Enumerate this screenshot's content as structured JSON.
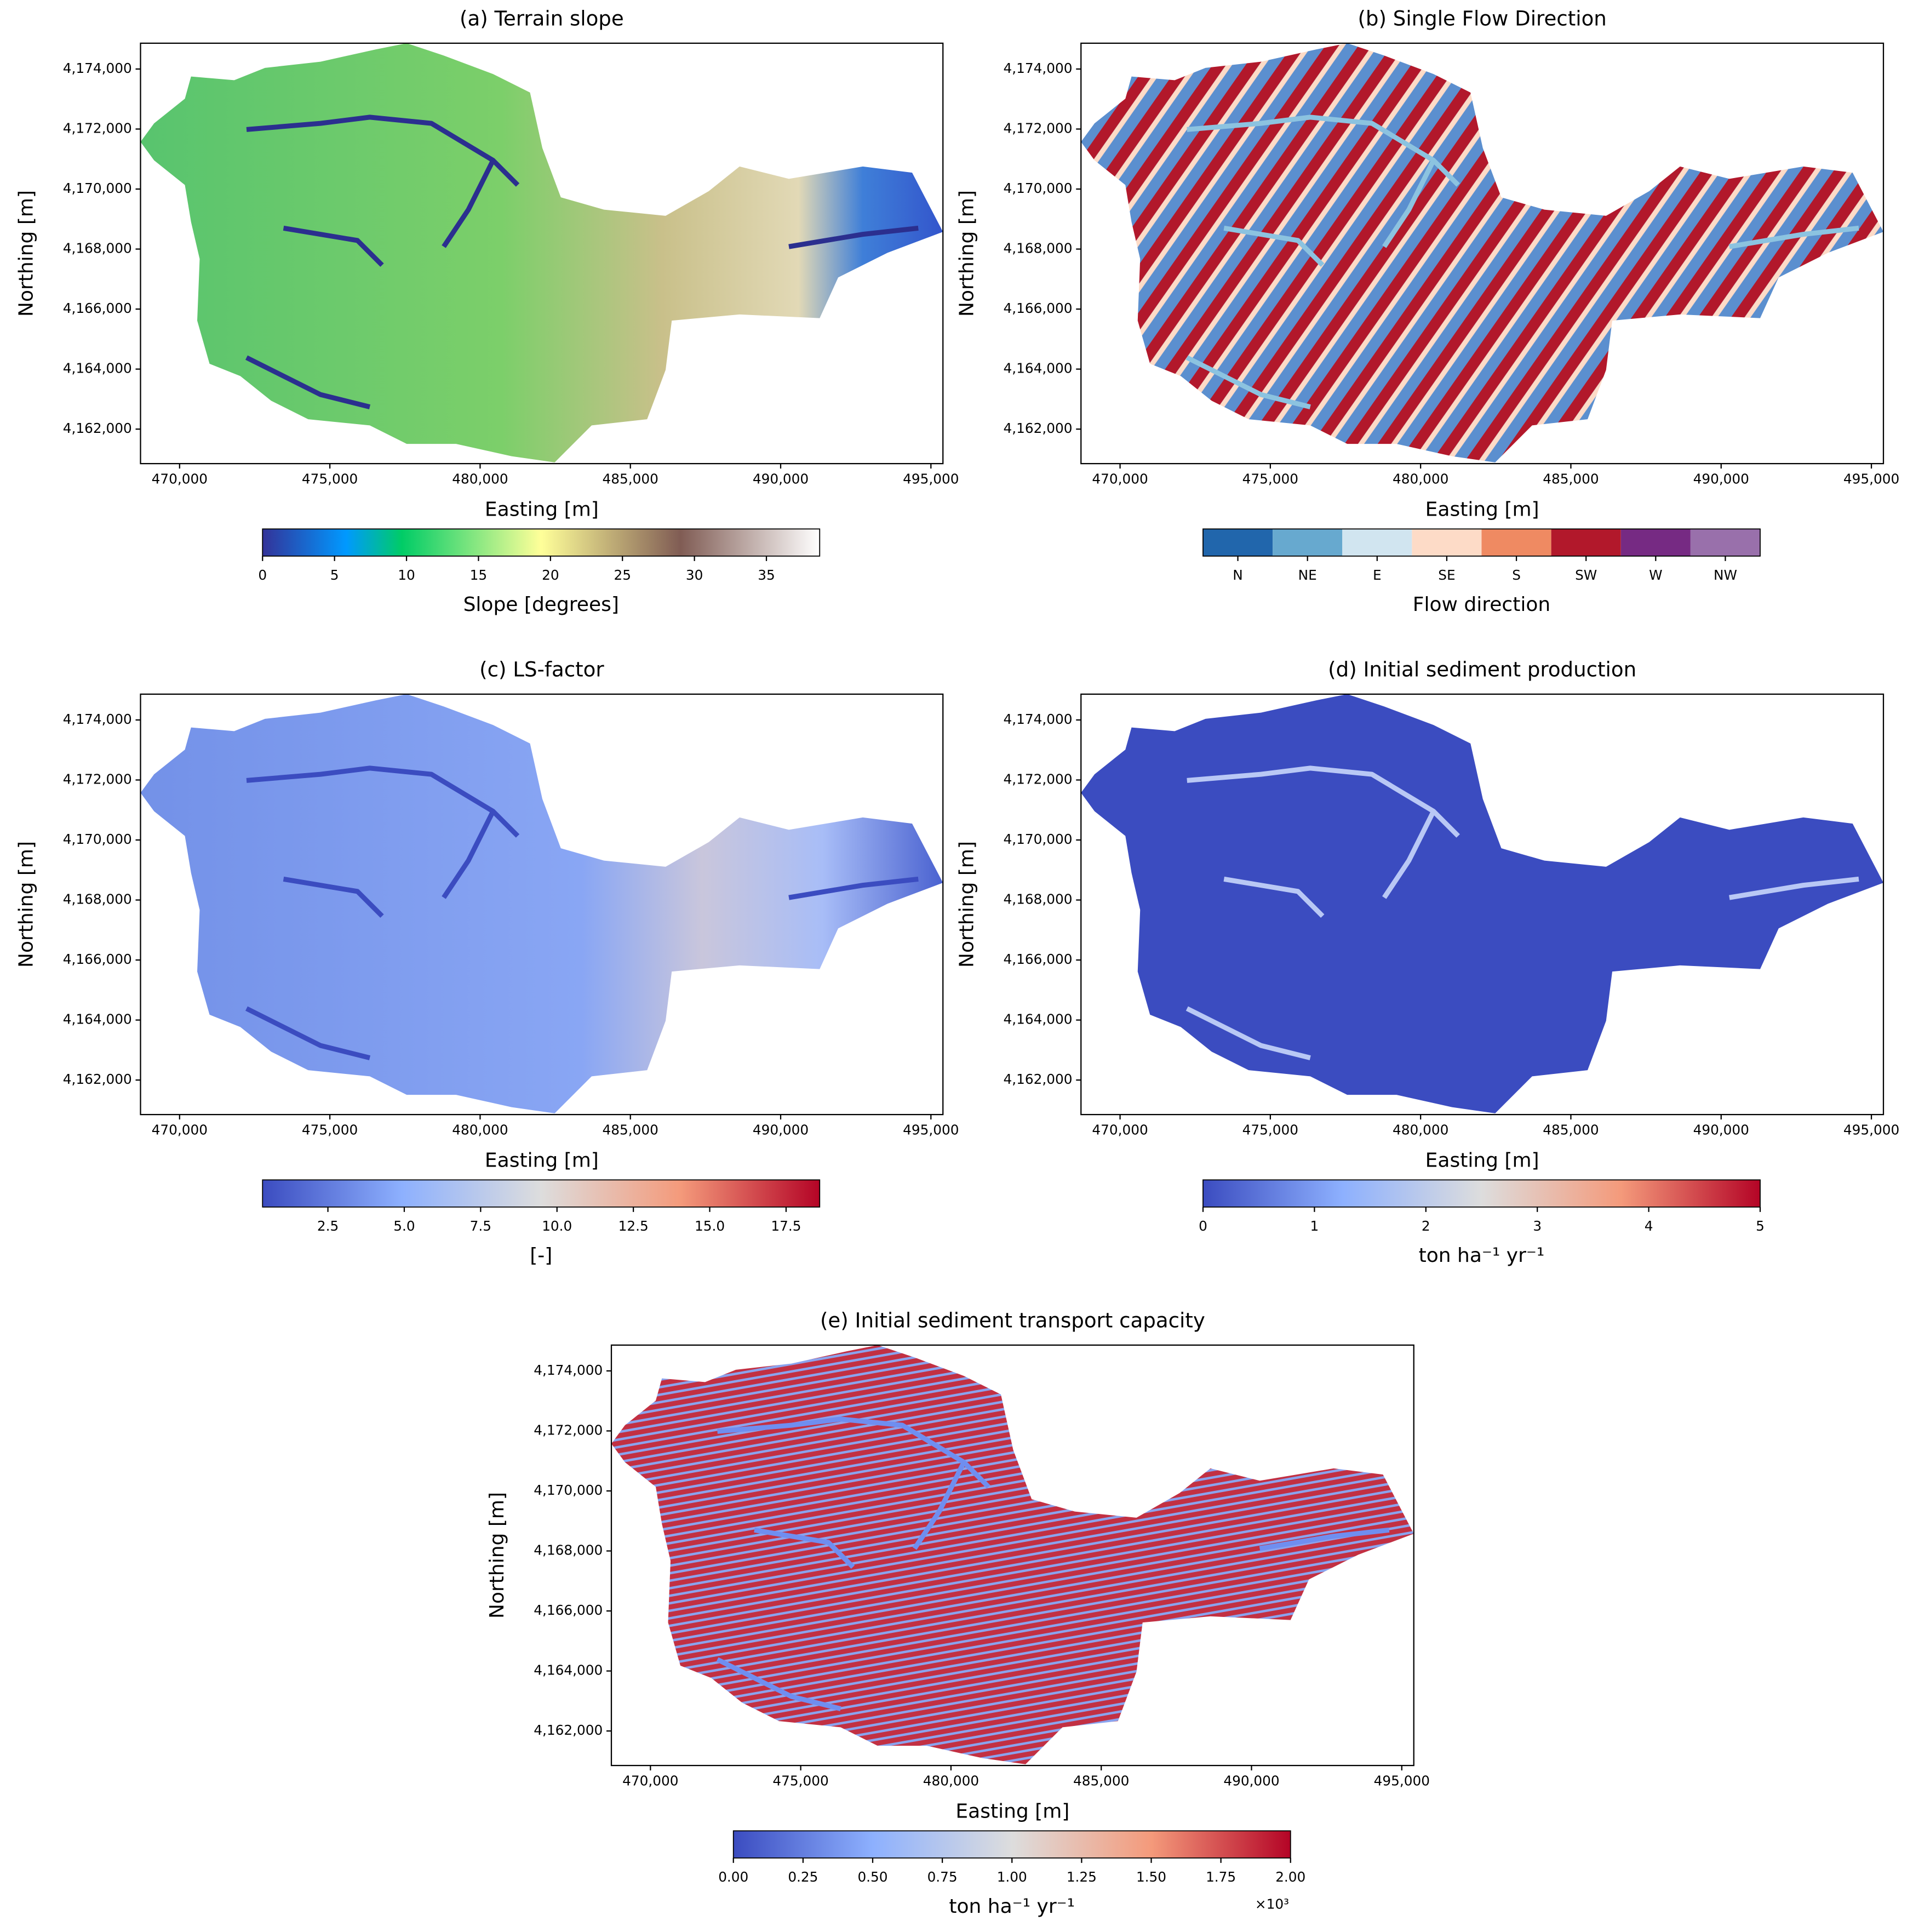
{
  "chart_data": [
    {
      "type": "raster",
      "title": "(a) Terrain slope",
      "xlabel": "Easting [m]",
      "ylabel": "Northing [m]",
      "xlim": [
        468700,
        495400
      ],
      "ylim": [
        4160850,
        4174860
      ],
      "xticks": [
        {
          "value": 470000,
          "label": "470,000"
        },
        {
          "value": 475000,
          "label": "475,000"
        },
        {
          "value": 480000,
          "label": "480,000"
        },
        {
          "value": 485000,
          "label": "485,000"
        },
        {
          "value": 490000,
          "label": "490,000"
        },
        {
          "value": 495000,
          "label": "495,000"
        }
      ],
      "yticks": [
        {
          "value": 4162000,
          "label": "4,162,000"
        },
        {
          "value": 4164000,
          "label": "4,164,000"
        },
        {
          "value": 4166000,
          "label": "4,166,000"
        },
        {
          "value": 4168000,
          "label": "4,168,000"
        },
        {
          "value": 4170000,
          "label": "4,170,000"
        },
        {
          "value": 4172000,
          "label": "4,172,000"
        },
        {
          "value": 4174000,
          "label": "4,174,000"
        }
      ],
      "colorbar": {
        "label": "Slope [degrees]",
        "colormap": "terrain",
        "lim": [
          0,
          38.7
        ],
        "ticks": [
          0,
          5,
          10,
          15,
          20,
          25,
          30,
          35
        ]
      }
    },
    {
      "type": "raster",
      "title": "(b) Single Flow Direction",
      "xlabel": "Easting [m]",
      "ylabel": "Northing [m]",
      "xlim": [
        468700,
        495400
      ],
      "ylim": [
        4160850,
        4174860
      ],
      "xticks": [
        {
          "value": 470000,
          "label": "470,000"
        },
        {
          "value": 475000,
          "label": "475,000"
        },
        {
          "value": 480000,
          "label": "480,000"
        },
        {
          "value": 485000,
          "label": "485,000"
        },
        {
          "value": 490000,
          "label": "490,000"
        },
        {
          "value": 495000,
          "label": "495,000"
        }
      ],
      "yticks": [
        {
          "value": 4162000,
          "label": "4,162,000"
        },
        {
          "value": 4164000,
          "label": "4,164,000"
        },
        {
          "value": 4166000,
          "label": "4,166,000"
        },
        {
          "value": 4168000,
          "label": "4,168,000"
        },
        {
          "value": 4170000,
          "label": "4,170,000"
        },
        {
          "value": 4172000,
          "label": "4,172,000"
        },
        {
          "value": 4174000,
          "label": "4,174,000"
        }
      ],
      "colorbar": {
        "label": "Flow direction",
        "categories": [
          "N",
          "NE",
          "E",
          "SE",
          "S",
          "SW",
          "W",
          "NW"
        ],
        "colors": [
          "#2166ac",
          "#67a9cf",
          "#d1e5f0",
          "#fddbc7",
          "#ef8a62",
          "#b2182b",
          "#762a83",
          "#9970ab"
        ]
      }
    },
    {
      "type": "raster",
      "title": "(c) LS-factor",
      "xlabel": "Easting [m]",
      "ylabel": "Northing [m]",
      "xlim": [
        468700,
        495400
      ],
      "ylim": [
        4160850,
        4174860
      ],
      "xticks": [
        {
          "value": 470000,
          "label": "470,000"
        },
        {
          "value": 475000,
          "label": "475,000"
        },
        {
          "value": 480000,
          "label": "480,000"
        },
        {
          "value": 485000,
          "label": "485,000"
        },
        {
          "value": 490000,
          "label": "490,000"
        },
        {
          "value": 495000,
          "label": "495,000"
        }
      ],
      "yticks": [
        {
          "value": 4162000,
          "label": "4,162,000"
        },
        {
          "value": 4164000,
          "label": "4,164,000"
        },
        {
          "value": 4166000,
          "label": "4,166,000"
        },
        {
          "value": 4168000,
          "label": "4,168,000"
        },
        {
          "value": 4170000,
          "label": "4,170,000"
        },
        {
          "value": 4172000,
          "label": "4,172,000"
        },
        {
          "value": 4174000,
          "label": "4,174,000"
        }
      ],
      "colorbar": {
        "label": "[-]",
        "colormap": "coolwarm",
        "lim": [
          0.36,
          18.6
        ],
        "ticks": [
          2.5,
          {
            "value": 5,
            "label": "5.0"
          },
          7.5,
          {
            "value": 10,
            "label": "10.0"
          },
          12.5,
          {
            "value": 15,
            "label": "15.0"
          },
          17.5
        ]
      }
    },
    {
      "type": "raster",
      "title": "(d) Initial sediment production",
      "xlabel": "Easting [m]",
      "ylabel": "Northing [m]",
      "xlim": [
        468700,
        495400
      ],
      "ylim": [
        4160850,
        4174860
      ],
      "xticks": [
        {
          "value": 470000,
          "label": "470,000"
        },
        {
          "value": 475000,
          "label": "475,000"
        },
        {
          "value": 480000,
          "label": "480,000"
        },
        {
          "value": 485000,
          "label": "485,000"
        },
        {
          "value": 490000,
          "label": "490,000"
        },
        {
          "value": 495000,
          "label": "495,000"
        }
      ],
      "yticks": [
        {
          "value": 4162000,
          "label": "4,162,000"
        },
        {
          "value": 4164000,
          "label": "4,164,000"
        },
        {
          "value": 4166000,
          "label": "4,166,000"
        },
        {
          "value": 4168000,
          "label": "4,168,000"
        },
        {
          "value": 4170000,
          "label": "4,170,000"
        },
        {
          "value": 4172000,
          "label": "4,172,000"
        },
        {
          "value": 4174000,
          "label": "4,174,000"
        }
      ],
      "colorbar": {
        "label": "ton ha⁻¹ yr⁻¹",
        "colormap": "coolwarm",
        "lim": [
          0,
          5
        ],
        "ticks": [
          0,
          1,
          2,
          3,
          4,
          5
        ]
      }
    },
    {
      "type": "raster",
      "title": "(e) Initial sediment transport capacity",
      "xlabel": "Easting [m]",
      "ylabel": "Northing [m]",
      "xlim": [
        468700,
        495400
      ],
      "ylim": [
        4160850,
        4174860
      ],
      "xticks": [
        {
          "value": 470000,
          "label": "470,000"
        },
        {
          "value": 475000,
          "label": "475,000"
        },
        {
          "value": 480000,
          "label": "480,000"
        },
        {
          "value": 485000,
          "label": "485,000"
        },
        {
          "value": 490000,
          "label": "490,000"
        },
        {
          "value": 495000,
          "label": "495,000"
        }
      ],
      "yticks": [
        {
          "value": 4162000,
          "label": "4,162,000"
        },
        {
          "value": 4164000,
          "label": "4,164,000"
        },
        {
          "value": 4166000,
          "label": "4,166,000"
        },
        {
          "value": 4168000,
          "label": "4,168,000"
        },
        {
          "value": 4170000,
          "label": "4,170,000"
        },
        {
          "value": 4172000,
          "label": "4,172,000"
        },
        {
          "value": 4174000,
          "label": "4,174,000"
        }
      ],
      "colorbar": {
        "label": "ton ha⁻¹ yr⁻¹",
        "colormap": "coolwarm",
        "lim": [
          0,
          2
        ],
        "offset_text": "×10³",
        "ticks": [
          {
            "value": 0,
            "label": "0.00"
          },
          {
            "value": 0.25,
            "label": "0.25"
          },
          {
            "value": 0.5,
            "label": "0.50"
          },
          {
            "value": 0.75,
            "label": "0.75"
          },
          {
            "value": 1,
            "label": "1.00"
          },
          {
            "value": 1.25,
            "label": "1.25"
          },
          {
            "value": 1.5,
            "label": "1.50"
          },
          {
            "value": 1.75,
            "label": "1.75"
          },
          {
            "value": 2,
            "label": "2.00"
          }
        ]
      }
    }
  ]
}
